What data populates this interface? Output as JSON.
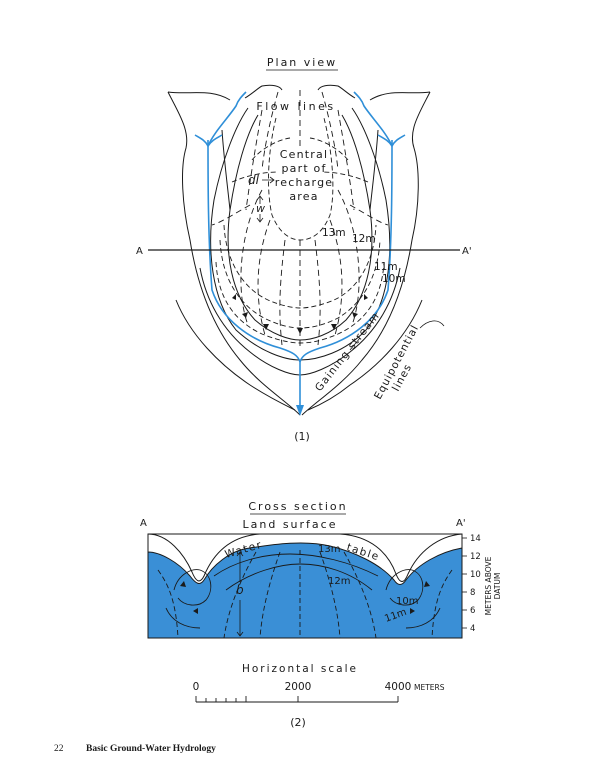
{
  "plan_view": {
    "title": "Plan view",
    "flow_lines_label": "Flow lines",
    "central_label": [
      "Central",
      "part of",
      "recharge",
      "area"
    ],
    "dl_label": "dl",
    "w_label": "w",
    "contour_labels": [
      "13m",
      "12m",
      "11m",
      "10m"
    ],
    "section_a": "A",
    "section_a_prime": "A'",
    "gaining_stream_label": "Gaining stream",
    "equipotential_label": [
      "Equipotential",
      "lines"
    ],
    "caption": "(1)"
  },
  "cross_section": {
    "title": "Cross section",
    "land_surface_label": "Land surface",
    "water_table_label": [
      "Water",
      "table"
    ],
    "a_label": "A",
    "a_prime_label": "A'",
    "b_label": "b",
    "contour_labels": [
      "13m",
      "12m",
      "10m",
      "11m"
    ],
    "axis_ticks": [
      "14",
      "12",
      "10",
      "8",
      "6",
      "4"
    ],
    "axis_label": [
      "METERS ABOVE",
      "DATUM"
    ],
    "horizontal_scale_label": "Horizontal scale",
    "scale_ticks": [
      "0",
      "2000",
      "4000"
    ],
    "scale_unit": "METERS",
    "caption": "(2)",
    "water_color": "#3a8fd6"
  },
  "footer": {
    "page_number": "22",
    "book_title": "Basic Ground-Water Hydrology"
  },
  "colors": {
    "stream": "#2f8fd8",
    "line": "#1a1a1a",
    "water": "#3a8fd6"
  }
}
